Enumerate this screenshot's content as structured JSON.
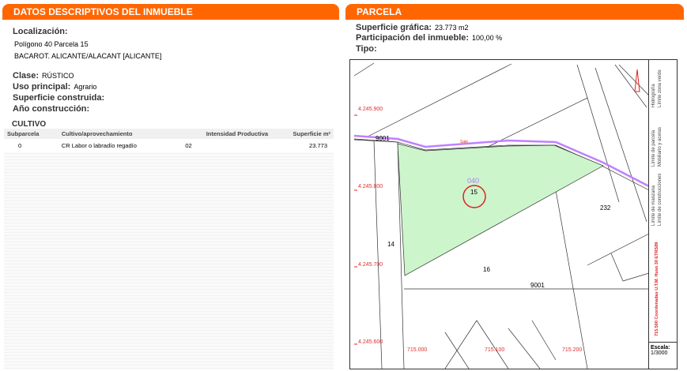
{
  "left": {
    "title": "DATOS DESCRIPTIVOS DEL INMUEBLE",
    "localizacion_label": "Localización:",
    "loc_line1": "Polígono 40 Parcela 15",
    "loc_line2": "BACAROT. ALICANTE/ALACANT [ALICANTE]",
    "clase_label": "Clase:",
    "clase": "RÚSTICO",
    "uso_label": "Uso principal:",
    "uso": "Agrario",
    "sup_label": "Superficie construida:",
    "anio_label": "Año construcción:",
    "cultivo_title": "CULTIVO",
    "table": {
      "headers": [
        "Subparcela",
        "Cultivo/aprovechamiento",
        "Intensidad Productiva",
        "Superficie m²"
      ],
      "rows": [
        [
          "0",
          "CR Labor o labradío regadío",
          "02",
          "23.773"
        ]
      ]
    }
  },
  "right": {
    "title": "PARCELA",
    "sup_label": "Superficie gráfica:",
    "sup": "23.773 m2",
    "part_label": "Participación del inmueble:",
    "part": "100,00 %",
    "tipo_label": "Tipo:"
  },
  "map": {
    "y_labels": [
      "4.245.900",
      "4.245.800",
      "4.245.700",
      "4.245.600"
    ],
    "x_labels": [
      "715.000",
      "715.100",
      "715.200"
    ],
    "parcels": {
      "p9001a": "9001",
      "p040": "040",
      "p15": "15",
      "p232": "232",
      "p14": "14",
      "p16": "16",
      "p9001b": "9001",
      "road": "Sale"
    },
    "legend": [
      "Límite de manzana",
      "Límite de construcciones",
      "Límite de parcela",
      "Mobiliario y aceras",
      "Hidrografía",
      "Límite zona verde"
    ],
    "coords_note": "715.500 Coordenadas U.T.M. Huso 30 ETRS89",
    "scale_label": "Escala:",
    "scale": "1/3000"
  },
  "colors": {
    "accent": "#ff6600",
    "parcel_fill": "#ccf5cc",
    "road": "#c080ff",
    "highlight": "#e02020"
  }
}
